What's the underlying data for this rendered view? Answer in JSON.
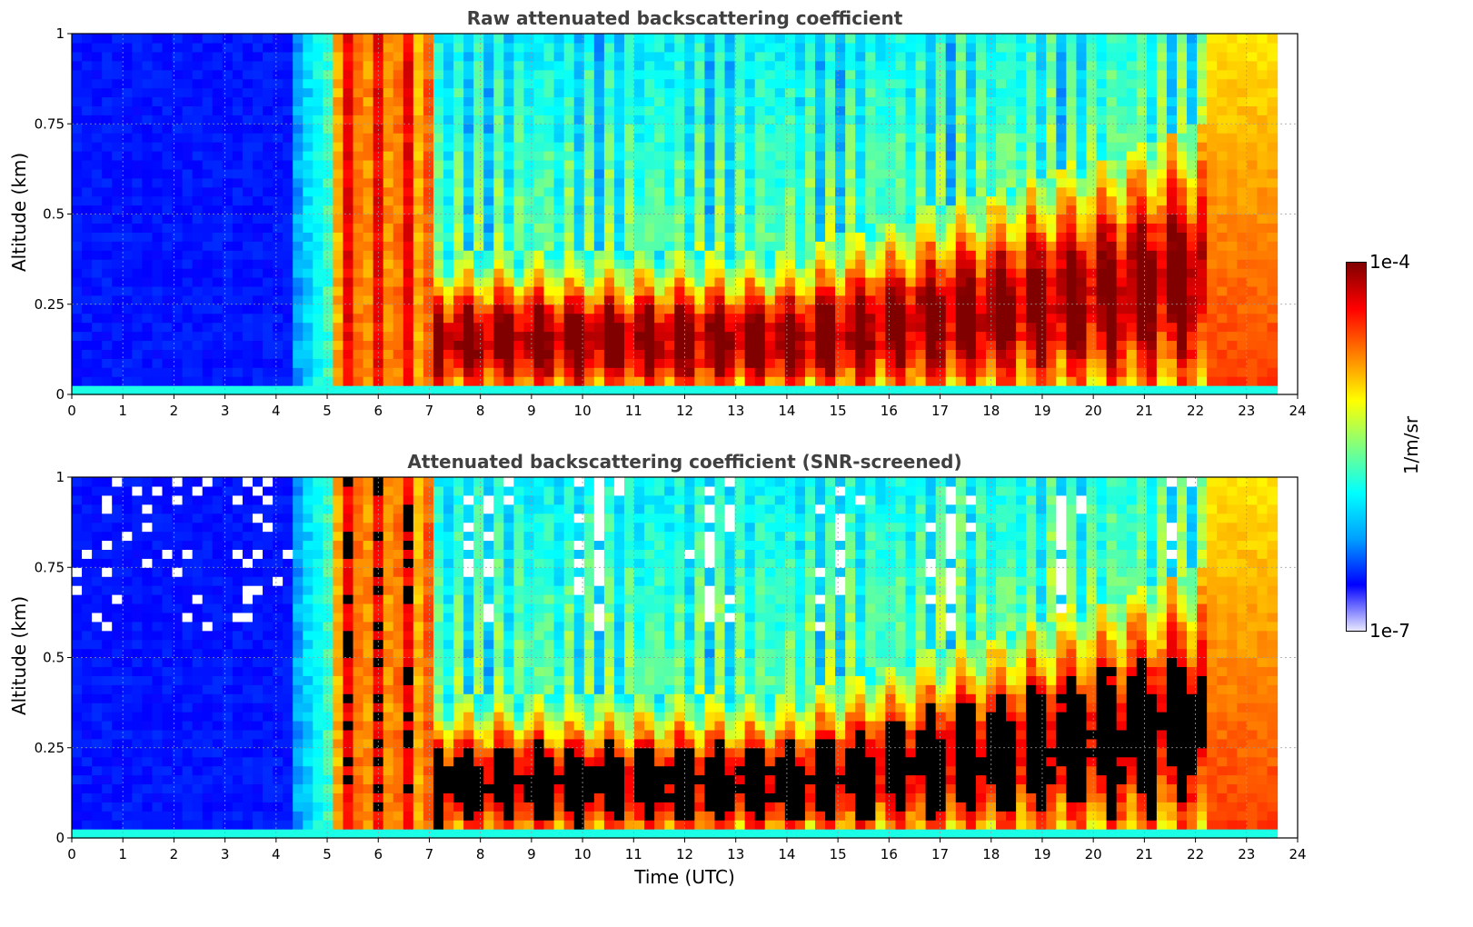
{
  "chart_data": [
    {
      "type": "heatmap",
      "title": "Raw attenuated backscattering coefficient",
      "xlabel": "",
      "ylabel": "Altitude (km)",
      "xlim": [
        0,
        24
      ],
      "ylim": [
        0,
        1
      ],
      "xticks": [
        "0",
        "1",
        "2",
        "3",
        "4",
        "5",
        "6",
        "7",
        "8",
        "9",
        "10",
        "11",
        "12",
        "13",
        "14",
        "15",
        "16",
        "17",
        "18",
        "19",
        "20",
        "21",
        "22",
        "23",
        "24"
      ],
      "yticks": [
        "0",
        "0.25",
        "0.5",
        "0.75",
        "1"
      ],
      "data_end_hour": 23.6,
      "screened": false,
      "grid": true
    },
    {
      "type": "heatmap",
      "title": "Attenuated backscattering coefficient (SNR-screened)",
      "xlabel": "Time (UTC)",
      "ylabel": "Altitude (km)",
      "xlim": [
        0,
        24
      ],
      "ylim": [
        0,
        1
      ],
      "xticks": [
        "0",
        "1",
        "2",
        "3",
        "4",
        "5",
        "6",
        "7",
        "8",
        "9",
        "10",
        "11",
        "12",
        "13",
        "14",
        "15",
        "16",
        "17",
        "18",
        "19",
        "20",
        "21",
        "22",
        "23",
        "24"
      ],
      "yticks": [
        "0",
        "0.25",
        "0.5",
        "0.75",
        "1"
      ],
      "data_end_hour": 23.6,
      "screened": true,
      "grid": true
    }
  ],
  "colorbar": {
    "label": "1/m/sr",
    "min_label": "1e-7",
    "max_label": "1e-4",
    "colormap": "jet",
    "colors": [
      "#e8e8ff",
      "#0000ff",
      "#00a0ff",
      "#00ffff",
      "#80ff80",
      "#ffff00",
      "#ff8000",
      "#ff0000",
      "#800000"
    ]
  }
}
